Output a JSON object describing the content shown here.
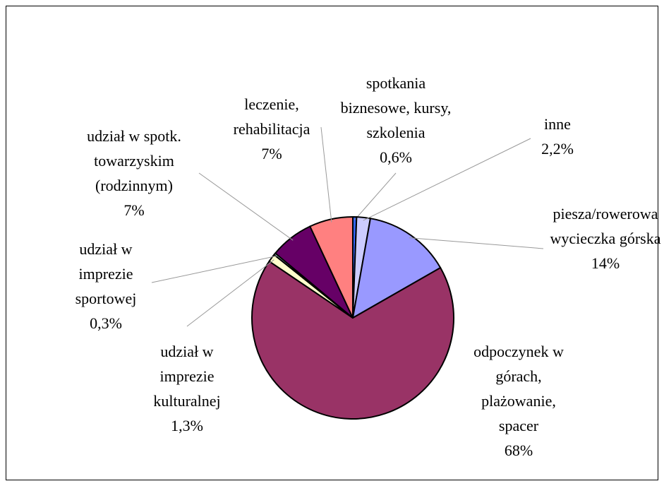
{
  "chart_data": {
    "type": "pie",
    "categories": [
      "spotkania biznesowe, kursy, szkolenia",
      "inne",
      "piesza/rowerowa wycieczka górska",
      "odpoczynek w górach, plażowanie, spacer",
      "udział w imprezie kulturalnej",
      "udział w imprezie sportowej",
      "udział w spotk. towarzyskim (rodzinnym)",
      "leczenie, rehabilitacja"
    ],
    "values": [
      0.6,
      2.2,
      14,
      68,
      1.3,
      0.3,
      7,
      7
    ],
    "value_labels": [
      "0,6%",
      "2,2%",
      "14%",
      "68%",
      "1,3%",
      "0,3%",
      "7%",
      "7%"
    ],
    "colors": [
      "#3366ff",
      "#ccccff",
      "#9999ff",
      "#993366",
      "#ffffcc",
      "#ccffff",
      "#660066",
      "#ff8080"
    ]
  }
}
